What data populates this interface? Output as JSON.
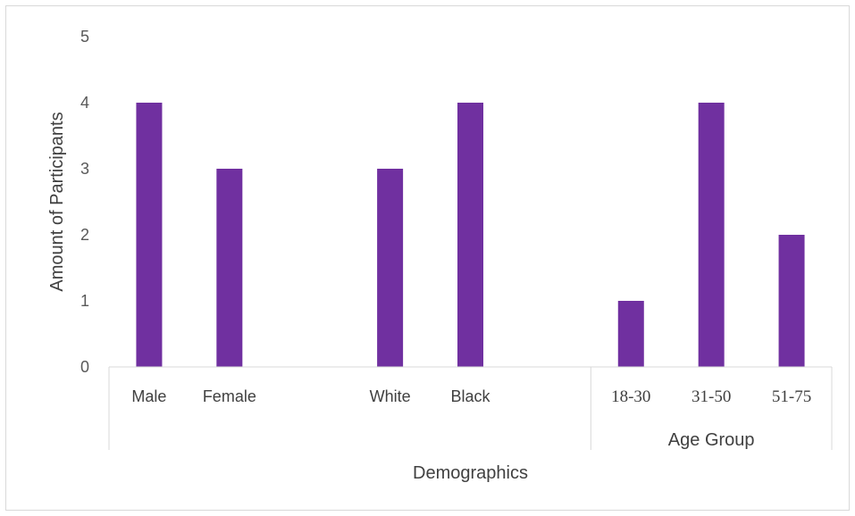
{
  "chart_data": {
    "type": "bar",
    "xlabel": "Demographics",
    "ylabel": "Amount of Participants",
    "ylim": [
      0,
      5
    ],
    "yticks": [
      0,
      1,
      2,
      3,
      4,
      5
    ],
    "grid": false,
    "bar_color": "#7030a0",
    "categories": [
      "Male",
      "Female",
      "",
      "White",
      "Black",
      "",
      "18-30",
      "31-50",
      "51-75"
    ],
    "values": [
      4,
      3,
      null,
      3,
      4,
      null,
      1,
      4,
      2
    ],
    "groups": [
      {
        "label": "",
        "categories": [
          "Male",
          "Female",
          "",
          "White",
          "Black",
          ""
        ]
      },
      {
        "label": "Age Group",
        "categories": [
          "18-30",
          "31-50",
          "51-75"
        ]
      }
    ]
  }
}
